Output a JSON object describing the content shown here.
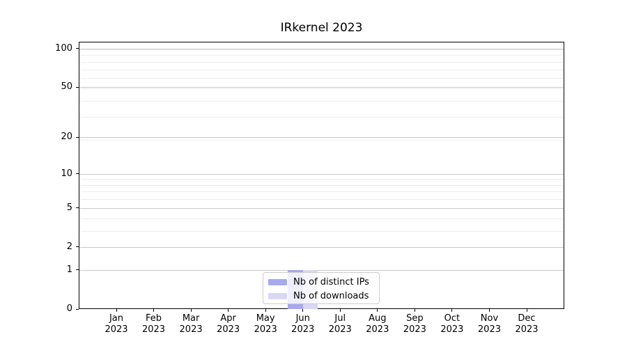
{
  "chart_data": {
    "type": "bar",
    "title": "IRkernel 2023",
    "categories": [
      "Jan 2023",
      "Feb 2023",
      "Mar 2023",
      "Apr 2023",
      "May 2023",
      "Jun 2023",
      "Jul 2023",
      "Aug 2023",
      "Sep 2023",
      "Oct 2023",
      "Nov 2023",
      "Dec 2023"
    ],
    "series": [
      {
        "name": "Nb of distinct IPs",
        "color": "#a8a8ee",
        "values": [
          0,
          0,
          0,
          0,
          0,
          1,
          0,
          0,
          0,
          0,
          0,
          0
        ]
      },
      {
        "name": "Nb of downloads",
        "color": "#d8d8f6",
        "values": [
          0,
          0,
          0,
          0,
          0,
          1,
          0,
          0,
          0,
          0,
          0,
          0
        ]
      }
    ],
    "xlabel": "",
    "ylabel": "",
    "yscale": "log1p",
    "y_ticks": [
      0,
      1,
      2,
      5,
      10,
      20,
      50,
      100
    ],
    "y_minor_grid_values": [
      1,
      2,
      3,
      4,
      5,
      6,
      7,
      8,
      9,
      19,
      29,
      39,
      49,
      59,
      69,
      79,
      89,
      99
    ],
    "ylim": [
      0,
      113
    ],
    "grid": true,
    "legend_position": "lower center"
  },
  "colors": {
    "background": "#ffffff",
    "text": "#000000",
    "spine": "#000000",
    "major_grid": "#c8c8c8",
    "minor_grid": "#ececec",
    "legend_border": "#cccccc",
    "legend_background": "rgba(255,255,255,0.8)"
  }
}
